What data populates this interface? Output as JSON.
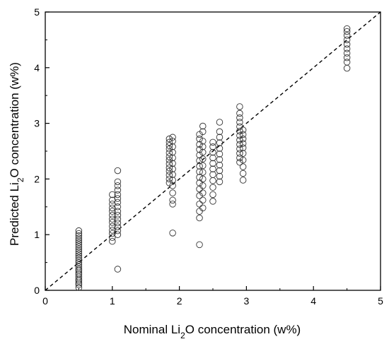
{
  "chart_data": {
    "type": "scatter",
    "title": "",
    "xlabel": {
      "prefix": "Nominal Li",
      "sub": "2",
      "suffix": "O concentration (w%)"
    },
    "ylabel": {
      "prefix": "Predicted Li",
      "sub": "2",
      "suffix": "O concentration (w%)"
    },
    "xlim": [
      0,
      5
    ],
    "ylim": [
      0,
      5
    ],
    "xticks": [
      0,
      1,
      2,
      3,
      4,
      5
    ],
    "yticks": [
      0,
      1,
      2,
      3,
      4,
      5
    ],
    "grid": false,
    "reference_line": {
      "style": "dashed",
      "from": [
        0,
        0
      ],
      "to": [
        5,
        5
      ]
    },
    "marker": {
      "shape": "circle",
      "fill": "none",
      "stroke": "#333333"
    },
    "groups": [
      {
        "x": 0.5,
        "y": [
          0.05,
          0.1,
          0.13,
          0.17,
          0.2,
          0.24,
          0.28,
          0.31,
          0.35,
          0.38,
          0.42,
          0.46,
          0.5,
          0.54,
          0.58,
          0.62,
          0.66,
          0.7,
          0.74,
          0.78,
          0.82,
          0.86,
          0.9,
          0.94,
          0.98,
          1.02,
          1.07
        ]
      },
      {
        "x": 1.0,
        "y": [
          0.88,
          0.95,
          1.02,
          1.08,
          1.15,
          1.22,
          1.28,
          1.35,
          1.42,
          1.48,
          1.55,
          1.62,
          1.72
        ]
      },
      {
        "x": 1.08,
        "y": [
          0.38,
          1.0,
          1.07,
          1.14,
          1.21,
          1.28,
          1.35,
          1.42,
          1.5,
          1.58,
          1.65,
          1.72,
          1.8,
          1.88,
          1.95,
          2.15
        ]
      },
      {
        "x": 1.85,
        "y": [
          1.93,
          2.0,
          2.07,
          2.14,
          2.2,
          2.27,
          2.34,
          2.4,
          2.47,
          2.54,
          2.6,
          2.66,
          2.72
        ]
      },
      {
        "x": 1.9,
        "y": [
          1.03,
          1.55,
          1.62,
          1.75,
          1.88,
          1.98,
          2.08,
          2.18,
          2.28,
          2.38,
          2.48,
          2.58,
          2.68,
          2.75
        ]
      },
      {
        "x": 2.3,
        "y": [
          0.82,
          1.3,
          1.42,
          1.55,
          1.7,
          1.82,
          1.93,
          2.03,
          2.13,
          2.23,
          2.33,
          2.43,
          2.53,
          2.62,
          2.72,
          2.8
        ]
      },
      {
        "x": 2.35,
        "y": [
          1.48,
          1.62,
          1.75,
          1.88,
          2.0,
          2.12,
          2.24,
          2.36,
          2.48,
          2.58,
          2.68,
          2.85,
          2.95
        ]
      },
      {
        "x": 2.5,
        "y": [
          1.6,
          1.72,
          1.85,
          1.97,
          2.08,
          2.18,
          2.28,
          2.38,
          2.48,
          2.58,
          2.66
        ]
      },
      {
        "x": 2.6,
        "y": [
          1.95,
          2.05,
          2.15,
          2.25,
          2.35,
          2.45,
          2.55,
          2.65,
          2.75,
          2.85,
          3.02
        ]
      },
      {
        "x": 2.9,
        "y": [
          2.3,
          2.38,
          2.46,
          2.54,
          2.62,
          2.7,
          2.78,
          2.86,
          2.94,
          3.02,
          3.1,
          3.18,
          3.3
        ]
      },
      {
        "x": 2.95,
        "y": [
          1.98,
          2.1,
          2.22,
          2.34,
          2.46,
          2.56,
          2.64,
          2.72,
          2.8,
          2.88
        ]
      },
      {
        "x": 4.5,
        "y": [
          3.99,
          4.1,
          4.18,
          4.26,
          4.34,
          4.42,
          4.5,
          4.58,
          4.65,
          4.7
        ]
      }
    ]
  }
}
